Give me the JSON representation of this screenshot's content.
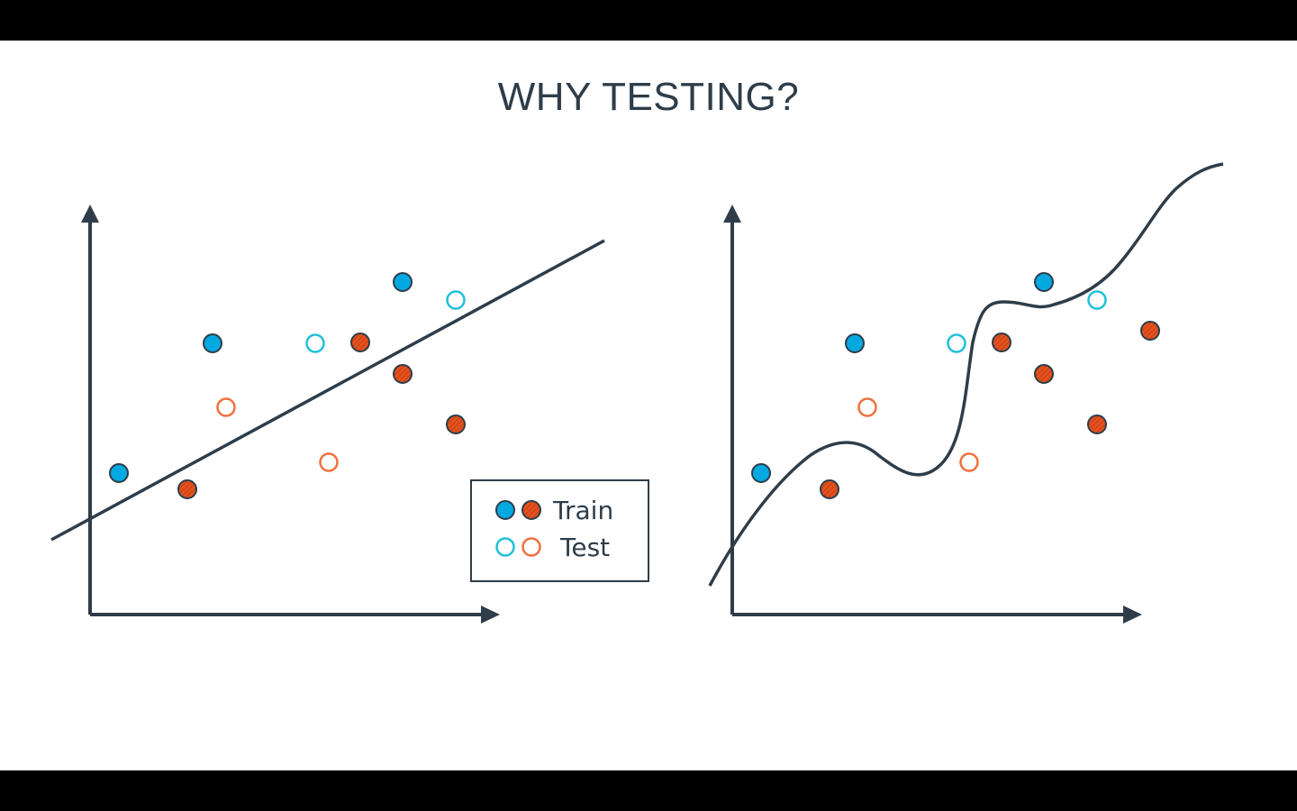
{
  "slide": {
    "title": "WHY TESTING?"
  },
  "legend": {
    "train_label": "Train",
    "test_label": "Test"
  },
  "colors": {
    "axis": "#2e3d49",
    "train_blue": "#02a9e0",
    "train_red": "#e7511e",
    "test_blue": "#20c0d8",
    "test_red": "#f0703e",
    "background": "#ffffff",
    "letterbox": "#000000"
  },
  "panels": [
    {
      "name": "left-panel",
      "model": "straight-line"
    },
    {
      "name": "right-panel",
      "model": "wiggly-curve"
    }
  ]
}
